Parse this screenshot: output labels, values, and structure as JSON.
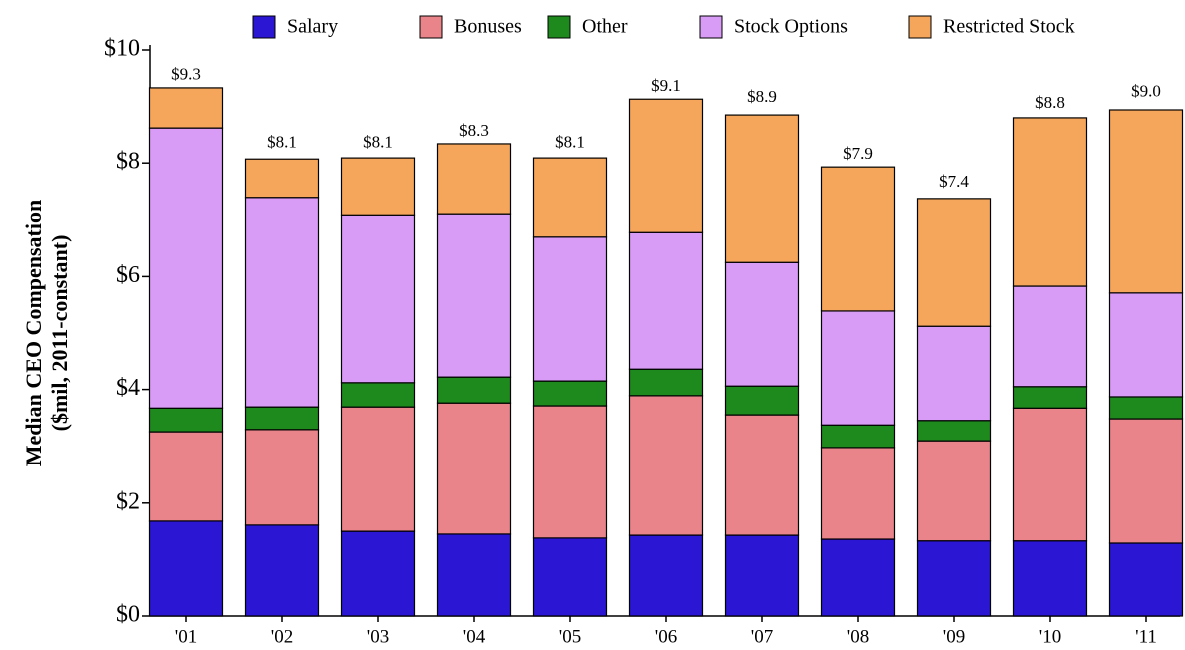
{
  "chart_data": {
    "type": "stacked_bar",
    "y_label": [
      "Median CEO Compensation",
      "($mil, 2011-constant)"
    ],
    "categories": [
      "'01",
      "'02",
      "'03",
      "'04",
      "'05",
      "'06",
      "'07",
      "'08",
      "'09",
      "'10",
      "'11"
    ],
    "series": [
      {
        "name": "Salary",
        "color": "#2b16d4",
        "values": [
          1.68,
          1.61,
          1.5,
          1.45,
          1.38,
          1.43,
          1.43,
          1.36,
          1.33,
          1.33,
          1.29
        ]
      },
      {
        "name": "Bonuses",
        "color": "#e8848a",
        "values": [
          1.57,
          1.68,
          2.19,
          2.31,
          2.33,
          2.46,
          2.12,
          1.61,
          1.76,
          2.34,
          2.19
        ]
      },
      {
        "name": "Other",
        "color": "#1e8a1e",
        "values": [
          0.42,
          0.4,
          0.43,
          0.46,
          0.44,
          0.47,
          0.51,
          0.4,
          0.36,
          0.38,
          0.39
        ]
      },
      {
        "name": "Stock Options",
        "color": "#d89cf6",
        "values": [
          4.95,
          3.7,
          2.96,
          2.88,
          2.55,
          2.42,
          2.19,
          2.02,
          1.67,
          1.78,
          1.84
        ]
      },
      {
        "name": "Restricted Stock",
        "color": "#f5a65b",
        "values": [
          0.71,
          0.68,
          1.01,
          1.24,
          1.39,
          2.35,
          2.6,
          2.54,
          2.25,
          2.97,
          3.23
        ]
      }
    ],
    "totals": {
      "values": [
        9.3,
        8.1,
        8.1,
        8.3,
        8.1,
        9.1,
        8.9,
        7.9,
        7.4,
        8.8,
        9.0
      ],
      "value_labels": [
        "$9.3",
        "$8.1",
        "$8.1",
        "$8.3",
        "$8.1",
        "$9.1",
        "$8.9",
        "$7.9",
        "$7.4",
        "$8.8",
        "$9.0"
      ]
    },
    "ylim": [
      0,
      10
    ],
    "yticks": [
      {
        "value": 0,
        "label": "$0"
      },
      {
        "value": 2,
        "label": "$2"
      },
      {
        "value": 4,
        "label": "$4"
      },
      {
        "value": 6,
        "label": "$6"
      },
      {
        "value": 8,
        "label": "$8"
      },
      {
        "value": 10,
        "label": "$10"
      }
    ],
    "legend": "top",
    "grid": false
  }
}
